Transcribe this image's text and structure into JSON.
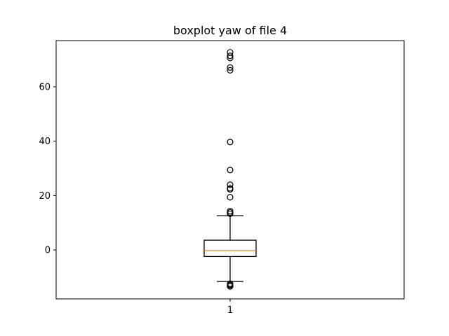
{
  "chart_data": {
    "type": "boxplot",
    "title": "boxplot yaw of file 4",
    "xlabel": "",
    "ylabel": "",
    "categories": [
      "1"
    ],
    "ylim": [
      -18,
      77
    ],
    "yticks": [
      0,
      20,
      40,
      60
    ],
    "grid": false,
    "boxes": [
      {
        "label": "1",
        "whisker_low": -11.6,
        "q1": -2.4,
        "median": -0.2,
        "q3": 3.6,
        "whisker_high": 12.6,
        "outliers": [
          -13.4,
          -13.0,
          -12.7,
          -12.4,
          13.3,
          13.8,
          14.3,
          19.4,
          22.3,
          22.7,
          24.0,
          29.4,
          39.7,
          66.1,
          67.1,
          70.6,
          71.4,
          72.7
        ]
      }
    ],
    "colors": {
      "box": "#000000",
      "median": "#ff7f0e",
      "outlier_edge": "#000000"
    }
  }
}
